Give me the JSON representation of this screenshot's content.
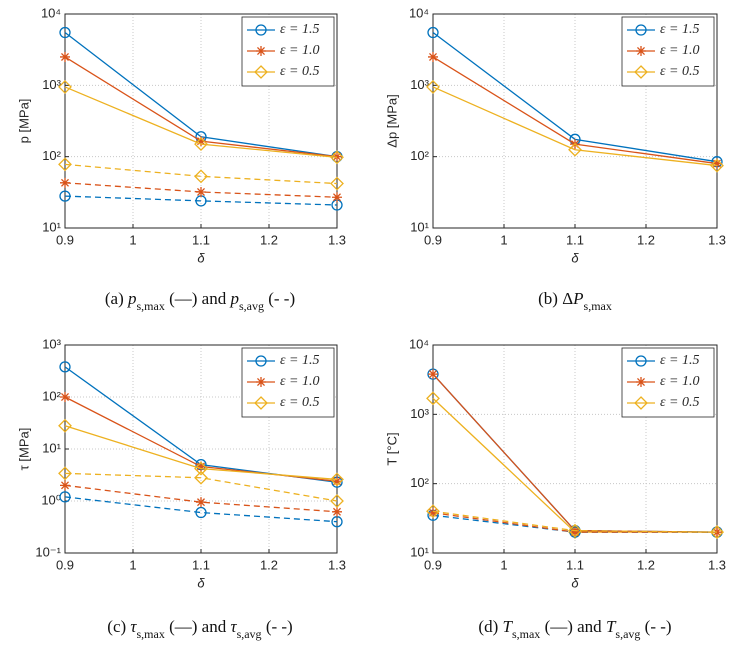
{
  "chart_data": [
    {
      "type": "line",
      "ylabel": "p [MPa]",
      "xlabel": "δ",
      "x": [
        0.9,
        1.1,
        1.3
      ],
      "xlim": [
        0.9,
        1.3
      ],
      "xticks": [
        0.9,
        1,
        1.1,
        1.2,
        1.3
      ],
      "ylim": [
        10,
        10000
      ],
      "log_y": true,
      "grid": true,
      "legend": "upper right",
      "yticks": [
        {
          "value": 10,
          "label": "10¹"
        },
        {
          "value": 100,
          "label": "10²"
        },
        {
          "value": 1000,
          "label": "10³"
        },
        {
          "value": 10000,
          "label": "10⁴"
        }
      ],
      "series": [
        {
          "name": "ε = 1.5",
          "color": "#0072bd",
          "marker": "circle",
          "values": [
            5500,
            190,
            100
          ]
        },
        {
          "name": "ε = 1.0",
          "color": "#d95319",
          "marker": "star",
          "values": [
            2500,
            165,
            100
          ]
        },
        {
          "name": "ε = 0.5",
          "color": "#edb120",
          "marker": "diamond",
          "values": [
            950,
            150,
            98
          ]
        },
        {
          "color": "#0072bd",
          "marker": "circle",
          "dashed": true,
          "values": [
            28,
            24,
            21
          ]
        },
        {
          "color": "#d95319",
          "marker": "star",
          "dashed": true,
          "values": [
            43,
            32,
            27
          ]
        },
        {
          "color": "#edb120",
          "marker": "diamond",
          "dashed": true,
          "values": [
            78,
            53,
            42
          ]
        }
      ],
      "caption": [
        {
          "text": "(a) "
        },
        {
          "text": "p",
          "italic": true
        },
        {
          "text": "s,max",
          "sub": true
        },
        {
          "text": " (—) and "
        },
        {
          "text": "p",
          "italic": true
        },
        {
          "text": "s,avg",
          "sub": true
        },
        {
          "text": " (- -)"
        }
      ]
    },
    {
      "type": "line",
      "ylabel": "Δp [MPa]",
      "xlabel": "δ",
      "x": [
        0.9,
        1.1,
        1.3
      ],
      "xlim": [
        0.9,
        1.3
      ],
      "xticks": [
        0.9,
        1,
        1.1,
        1.2,
        1.3
      ],
      "ylim": [
        10,
        10000
      ],
      "log_y": true,
      "grid": true,
      "legend": "upper right",
      "yticks": [
        {
          "value": 10,
          "label": "10¹"
        },
        {
          "value": 100,
          "label": "10²"
        },
        {
          "value": 1000,
          "label": "10³"
        },
        {
          "value": 10000,
          "label": "10⁴"
        }
      ],
      "series": [
        {
          "name": "ε = 1.5",
          "color": "#0072bd",
          "marker": "circle",
          "values": [
            5500,
            175,
            85
          ]
        },
        {
          "name": "ε = 1.0",
          "color": "#d95319",
          "marker": "star",
          "values": [
            2500,
            150,
            80
          ]
        },
        {
          "name": "ε = 0.5",
          "color": "#edb120",
          "marker": "diamond",
          "values": [
            950,
            125,
            75
          ]
        }
      ],
      "caption": [
        {
          "text": "(b) Δ"
        },
        {
          "text": "P",
          "italic": true
        },
        {
          "text": "s,max",
          "sub": true
        }
      ]
    },
    {
      "type": "line",
      "ylabel": "τ [MPa]",
      "xlabel": "δ",
      "x": [
        0.9,
        1.1,
        1.3
      ],
      "xlim": [
        0.9,
        1.3
      ],
      "xticks": [
        0.9,
        1,
        1.1,
        1.2,
        1.3
      ],
      "ylim": [
        0.1,
        1000
      ],
      "log_y": true,
      "grid": true,
      "legend": "upper right",
      "yticks": [
        {
          "value": 0.1,
          "label": "10⁻¹"
        },
        {
          "value": 1,
          "label": "10⁰"
        },
        {
          "value": 10,
          "label": "10¹"
        },
        {
          "value": 100,
          "label": "10²"
        },
        {
          "value": 1000,
          "label": "10³"
        }
      ],
      "series": [
        {
          "name": "ε = 1.5",
          "color": "#0072bd",
          "marker": "circle",
          "values": [
            380,
            5,
            2.3
          ]
        },
        {
          "name": "ε = 1.0",
          "color": "#d95319",
          "marker": "star",
          "values": [
            100,
            4.6,
            2.4
          ]
        },
        {
          "name": "ε = 0.5",
          "color": "#edb120",
          "marker": "diamond",
          "values": [
            28,
            4.2,
            2.6
          ]
        },
        {
          "color": "#0072bd",
          "marker": "circle",
          "dashed": true,
          "values": [
            1.2,
            0.6,
            0.4
          ]
        },
        {
          "color": "#d95319",
          "marker": "star",
          "dashed": true,
          "values": [
            2,
            0.95,
            0.62
          ]
        },
        {
          "color": "#edb120",
          "marker": "diamond",
          "dashed": true,
          "values": [
            3.4,
            2.8,
            1.0
          ]
        }
      ],
      "caption": [
        {
          "text": "(c) "
        },
        {
          "text": "τ",
          "italic": true
        },
        {
          "text": "s,max",
          "sub": true
        },
        {
          "text": " (—) and "
        },
        {
          "text": "τ",
          "italic": true
        },
        {
          "text": "s,avg",
          "sub": true
        },
        {
          "text": " (- -)"
        }
      ]
    },
    {
      "type": "line",
      "ylabel": "T [°C]",
      "xlabel": "δ",
      "x": [
        0.9,
        1.1,
        1.3
      ],
      "xlim": [
        0.9,
        1.3
      ],
      "xticks": [
        0.9,
        1,
        1.1,
        1.2,
        1.3
      ],
      "ylim": [
        10,
        10000
      ],
      "log_y": true,
      "grid": true,
      "legend": "upper right",
      "yticks": [
        {
          "value": 10,
          "label": "10¹"
        },
        {
          "value": 100,
          "label": "10²"
        },
        {
          "value": 1000,
          "label": "10³"
        },
        {
          "value": 10000,
          "label": "10⁴"
        }
      ],
      "series": [
        {
          "name": "ε = 1.5",
          "color": "#0072bd",
          "marker": "circle",
          "values": [
            3800,
            21,
            20
          ]
        },
        {
          "name": "ε = 1.0",
          "color": "#d95319",
          "marker": "star",
          "values": [
            3800,
            21,
            20
          ]
        },
        {
          "name": "ε = 0.5",
          "color": "#edb120",
          "marker": "diamond",
          "values": [
            1700,
            20,
            20
          ]
        },
        {
          "color": "#0072bd",
          "marker": "circle",
          "dashed": true,
          "values": [
            35,
            20,
            20
          ]
        },
        {
          "color": "#d95319",
          "marker": "star",
          "dashed": true,
          "values": [
            38,
            20,
            20
          ]
        },
        {
          "color": "#edb120",
          "marker": "diamond",
          "dashed": true,
          "values": [
            40,
            21,
            20
          ]
        }
      ],
      "caption": [
        {
          "text": "(d) "
        },
        {
          "text": "T",
          "italic": true
        },
        {
          "text": "s,max",
          "sub": true
        },
        {
          "text": " (—) and "
        },
        {
          "text": "T",
          "italic": true
        },
        {
          "text": "s,avg",
          "sub": true
        },
        {
          "text": " (- -)"
        }
      ]
    }
  ]
}
